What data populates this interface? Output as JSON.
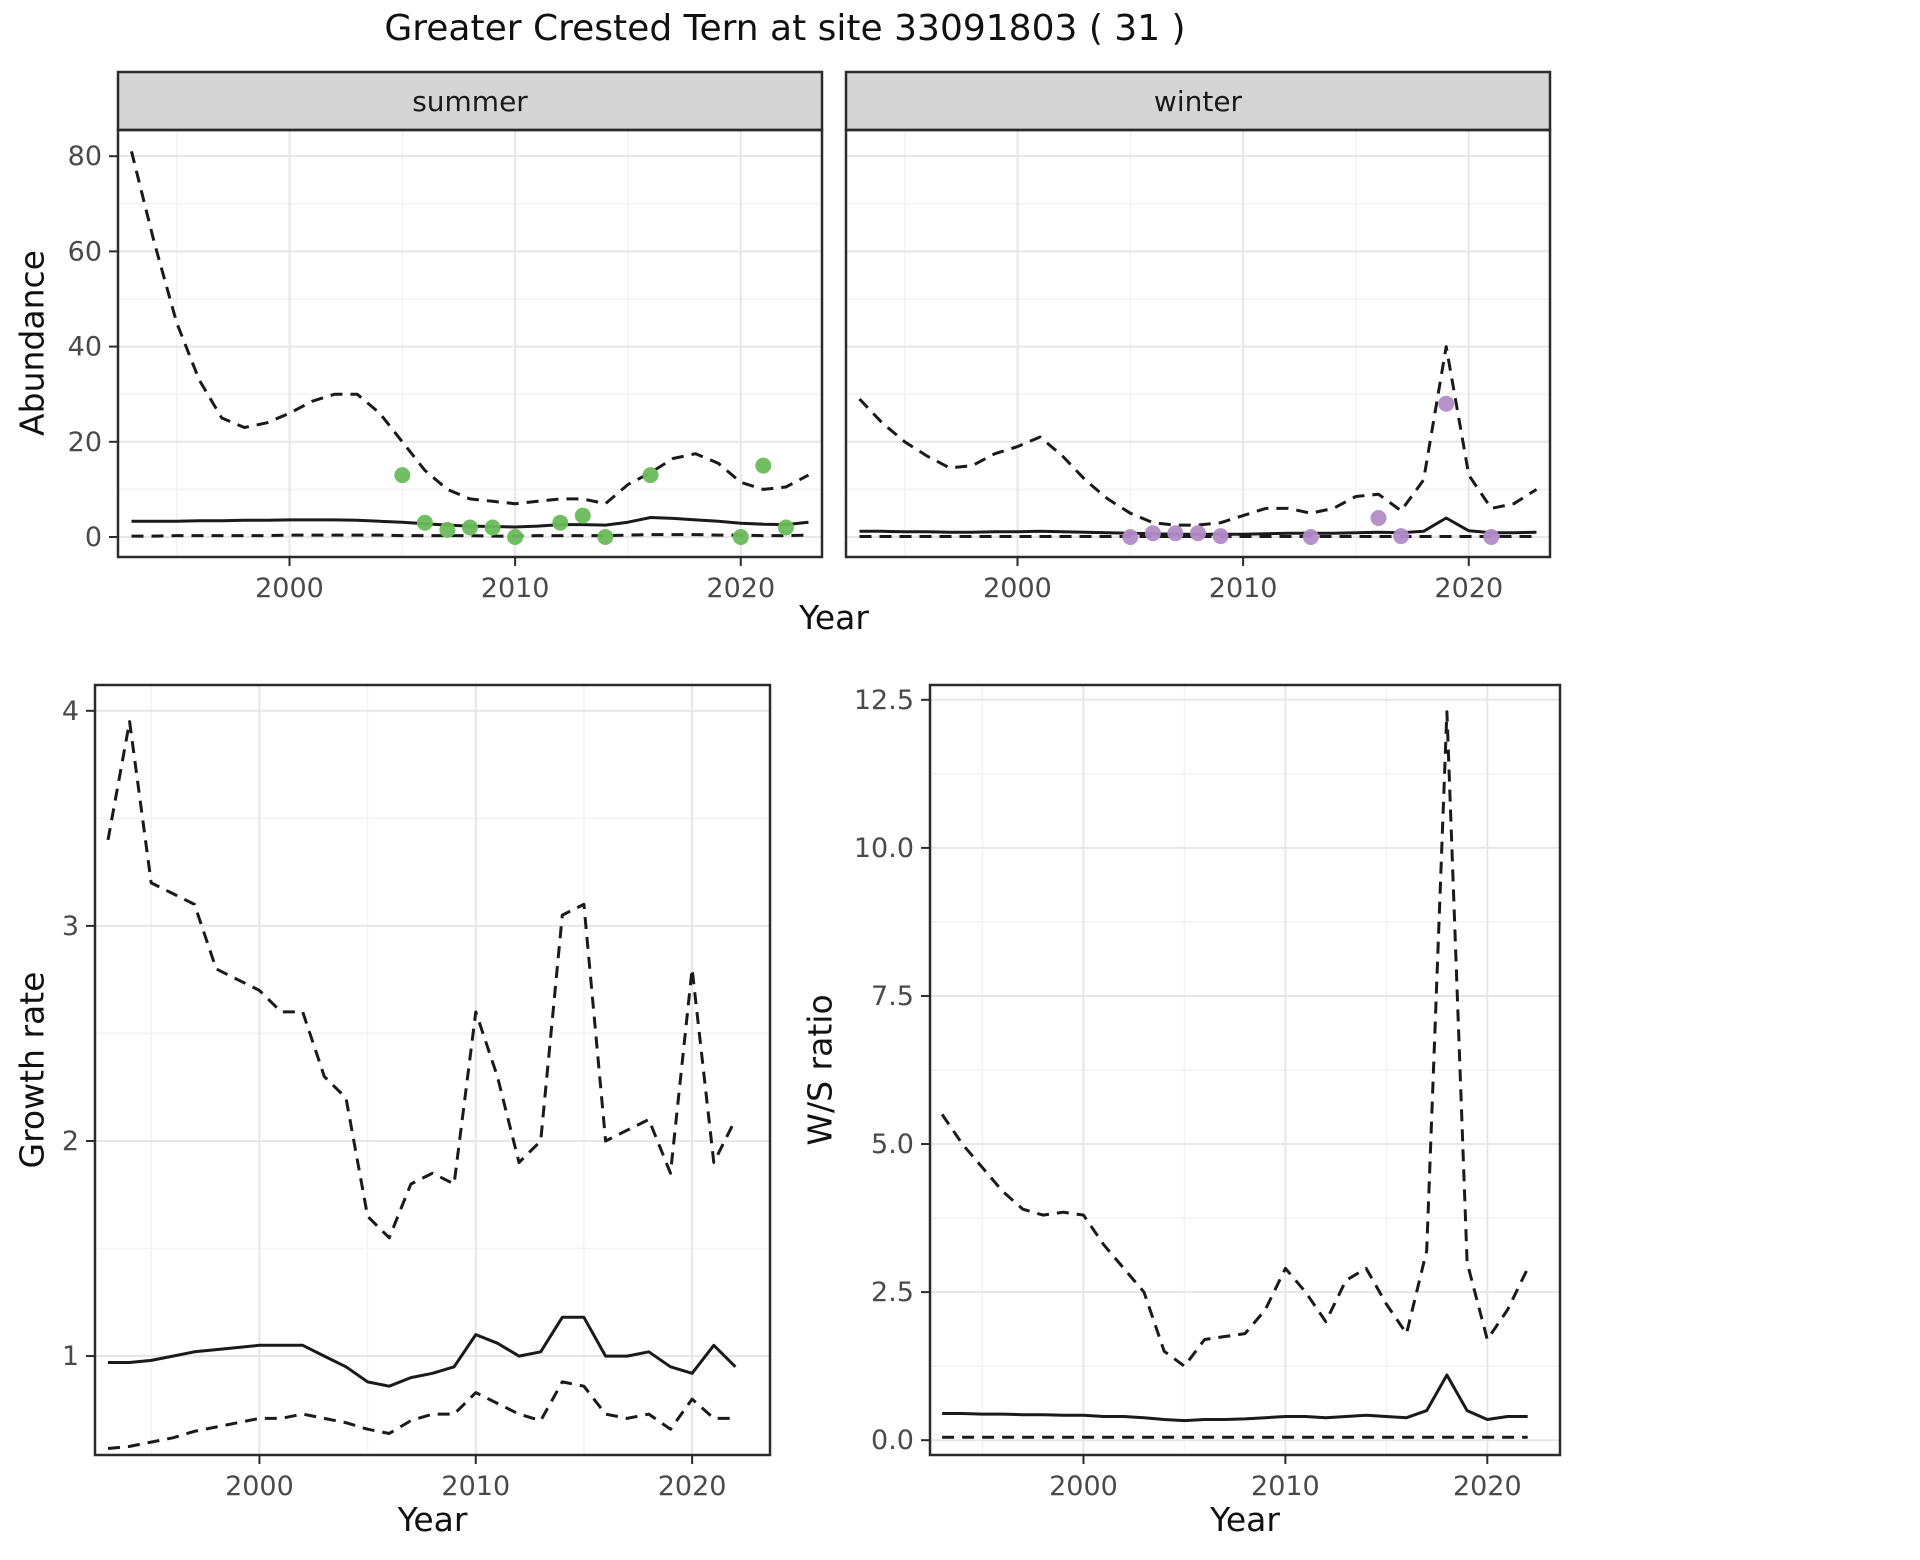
{
  "title": "Greater Crested Tern at site 33091803 ( 31 )",
  "colors": {
    "line": "#1a1a1a",
    "summer_point": "#6abc5b",
    "winter_point": "#b18cc6",
    "strip_bg": "#d5d5d5",
    "panel_border": "#2b2b2b",
    "grid_major": "#e7e7e7",
    "grid_minor": "#f3f3f3",
    "tick_text": "#4a4a4a"
  },
  "chart_data": [
    {
      "id": "abundance_summer",
      "type": "line",
      "strip": "summer",
      "xlabel": "Year",
      "ylabel": "Abundance",
      "xlim": [
        1992.4,
        2023.6
      ],
      "ylim": [
        -4.2,
        85.5
      ],
      "xticks": [
        2000,
        2010,
        2020
      ],
      "xtick_labels": [
        "2000",
        "2010",
        "2020"
      ],
      "yticks": [
        0,
        20,
        40,
        60,
        80
      ],
      "ytick_labels": [
        "0",
        "20",
        "40",
        "60",
        "80"
      ],
      "xminor": [
        1995,
        2005,
        2015
      ],
      "yminor": [
        10,
        30,
        50,
        70
      ],
      "grid": true,
      "legend": "none",
      "x": [
        1993,
        1994,
        1995,
        1996,
        1997,
        1998,
        1999,
        2000,
        2001,
        2002,
        2003,
        2004,
        2005,
        2006,
        2007,
        2008,
        2009,
        2010,
        2011,
        2012,
        2013,
        2014,
        2015,
        2016,
        2017,
        2018,
        2019,
        2020,
        2021,
        2022,
        2023
      ],
      "series": [
        {
          "name": "upper_95ci",
          "style": "dashed",
          "values": [
            81,
            62,
            45,
            33,
            25,
            23,
            24,
            26,
            28.5,
            30,
            30,
            26,
            20,
            14,
            10,
            8,
            7.5,
            7,
            7.5,
            8,
            8,
            7,
            11,
            13.5,
            16.5,
            17.5,
            15.5,
            11.5,
            10,
            10.5,
            13
          ]
        },
        {
          "name": "modelled_mean",
          "style": "solid",
          "values": [
            3.3,
            3.3,
            3.3,
            3.4,
            3.4,
            3.5,
            3.5,
            3.6,
            3.6,
            3.6,
            3.5,
            3.3,
            3.1,
            2.8,
            2.5,
            2.3,
            2.2,
            2.1,
            2.3,
            2.6,
            2.6,
            2.5,
            3.1,
            4.1,
            3.9,
            3.6,
            3.3,
            2.9,
            2.7,
            2.6,
            3.1
          ]
        },
        {
          "name": "lower_95ci",
          "style": "dashed",
          "values": [
            0.2,
            0.2,
            0.3,
            0.3,
            0.3,
            0.3,
            0.3,
            0.4,
            0.4,
            0.4,
            0.4,
            0.4,
            0.3,
            0.3,
            0.3,
            0.3,
            0.2,
            0.2,
            0.3,
            0.3,
            0.3,
            0.3,
            0.4,
            0.5,
            0.5,
            0.5,
            0.4,
            0.4,
            0.3,
            0.3,
            0.4
          ]
        }
      ],
      "points": {
        "name": "observed-counts-summer",
        "color": "#6abc5b",
        "data": [
          [
            2005,
            13
          ],
          [
            2006,
            3
          ],
          [
            2007,
            1.5
          ],
          [
            2008,
            2
          ],
          [
            2009,
            2
          ],
          [
            2010,
            0
          ],
          [
            2012,
            3
          ],
          [
            2013,
            4.5
          ],
          [
            2014,
            0
          ],
          [
            2016,
            13
          ],
          [
            2020,
            0
          ],
          [
            2021,
            15
          ],
          [
            2022,
            2
          ]
        ]
      }
    },
    {
      "id": "abundance_winter",
      "type": "line",
      "strip": "winter",
      "xlabel": "Year",
      "ylabel": "Abundance",
      "xlim": [
        1992.4,
        2023.6
      ],
      "ylim": [
        -4.2,
        85.5
      ],
      "xticks": [
        2000,
        2010,
        2020
      ],
      "xtick_labels": [
        "2000",
        "2010",
        "2020"
      ],
      "yticks": [
        0,
        20,
        40,
        60,
        80
      ],
      "ytick_labels": [
        "0",
        "20",
        "40",
        "60",
        "80"
      ],
      "xminor": [
        1995,
        2005,
        2015
      ],
      "yminor": [
        10,
        30,
        50,
        70
      ],
      "grid": true,
      "legend": "none",
      "x": [
        1993,
        1994,
        1995,
        1996,
        1997,
        1998,
        1999,
        2000,
        2001,
        2002,
        2003,
        2004,
        2005,
        2006,
        2007,
        2008,
        2009,
        2010,
        2011,
        2012,
        2013,
        2014,
        2015,
        2016,
        2017,
        2018,
        2019,
        2020,
        2021,
        2022,
        2023
      ],
      "series": [
        {
          "name": "upper_95ci",
          "style": "dashed",
          "values": [
            29,
            24,
            20,
            17,
            14.5,
            15,
            17.5,
            19,
            21,
            17,
            12,
            8,
            5,
            3,
            2.5,
            2.5,
            3,
            4.5,
            6,
            6,
            5,
            6,
            8.5,
            9,
            5.5,
            12,
            40,
            13,
            6,
            7,
            10
          ]
        },
        {
          "name": "modelled_mean",
          "style": "solid",
          "values": [
            1.2,
            1.2,
            1.1,
            1.1,
            1.0,
            1.0,
            1.1,
            1.1,
            1.2,
            1.1,
            1.0,
            0.9,
            0.8,
            0.7,
            0.6,
            0.6,
            0.6,
            0.6,
            0.7,
            0.8,
            0.8,
            0.8,
            0.9,
            1.0,
            0.9,
            1.2,
            4.0,
            1.3,
            0.9,
            0.9,
            1.0
          ]
        },
        {
          "name": "lower_95ci",
          "style": "dashed",
          "values": [
            0.1,
            0.1,
            0.1,
            0.1,
            0.1,
            0.1,
            0.1,
            0.1,
            0.1,
            0.1,
            0.1,
            0.1,
            0.1,
            0.1,
            0.1,
            0.1,
            0.1,
            0.1,
            0.1,
            0.1,
            0.1,
            0.1,
            0.1,
            0.1,
            0.1,
            0.1,
            0.1,
            0.1,
            0.1,
            0.1,
            0.1
          ]
        }
      ],
      "points": {
        "name": "observed-counts-winter",
        "color": "#b18cc6",
        "data": [
          [
            2005,
            0
          ],
          [
            2006,
            0.8
          ],
          [
            2007,
            0.8
          ],
          [
            2008,
            0.8
          ],
          [
            2009,
            0.2
          ],
          [
            2013,
            0
          ],
          [
            2016,
            4
          ],
          [
            2017,
            0.2
          ],
          [
            2019,
            28
          ],
          [
            2021,
            0
          ]
        ]
      }
    },
    {
      "id": "growth_rate",
      "type": "line",
      "strip": null,
      "xlabel": "Year",
      "ylabel": "Growth rate",
      "xlim": [
        1992.4,
        2023.6
      ],
      "ylim": [
        0.54,
        4.12
      ],
      "xticks": [
        2000,
        2010,
        2020
      ],
      "xtick_labels": [
        "2000",
        "2010",
        "2020"
      ],
      "yticks": [
        1,
        2,
        3,
        4
      ],
      "ytick_labels": [
        "1",
        "2",
        "3",
        "4"
      ],
      "xminor": [
        1995,
        2005,
        2015
      ],
      "yminor": [
        1.5,
        2.5,
        3.5
      ],
      "grid": true,
      "legend": "none",
      "x": [
        1993,
        1994,
        1995,
        1996,
        1997,
        1998,
        1999,
        2000,
        2001,
        2002,
        2003,
        2004,
        2005,
        2006,
        2007,
        2008,
        2009,
        2010,
        2011,
        2012,
        2013,
        2014,
        2015,
        2016,
        2017,
        2018,
        2019,
        2020,
        2021,
        2022
      ],
      "series": [
        {
          "name": "upper_95ci",
          "style": "dashed",
          "values": [
            3.4,
            3.95,
            3.2,
            3.15,
            3.1,
            2.8,
            2.75,
            2.7,
            2.6,
            2.6,
            2.3,
            2.2,
            1.65,
            1.55,
            1.8,
            1.85,
            1.8,
            2.6,
            2.3,
            1.9,
            2.0,
            3.05,
            3.1,
            2.0,
            2.05,
            2.1,
            1.85,
            2.8,
            1.9,
            2.1
          ]
        },
        {
          "name": "modelled_mean",
          "style": "solid",
          "values": [
            0.97,
            0.97,
            0.98,
            1.0,
            1.02,
            1.03,
            1.04,
            1.05,
            1.05,
            1.05,
            1.0,
            0.95,
            0.88,
            0.86,
            0.9,
            0.92,
            0.95,
            1.1,
            1.06,
            1.0,
            1.02,
            1.18,
            1.18,
            1.0,
            1.0,
            1.02,
            0.95,
            0.92,
            1.05,
            0.95
          ]
        },
        {
          "name": "lower_95ci",
          "style": "dashed",
          "values": [
            0.57,
            0.58,
            0.6,
            0.62,
            0.65,
            0.67,
            0.69,
            0.71,
            0.71,
            0.73,
            0.71,
            0.69,
            0.66,
            0.64,
            0.7,
            0.73,
            0.73,
            0.83,
            0.78,
            0.73,
            0.7,
            0.88,
            0.86,
            0.73,
            0.71,
            0.73,
            0.66,
            0.8,
            0.71,
            0.71
          ]
        }
      ],
      "points": null
    },
    {
      "id": "ws_ratio",
      "type": "line",
      "strip": null,
      "xlabel": "Year",
      "ylabel": "W/S ratio",
      "xlim": [
        1992.4,
        2023.6
      ],
      "ylim": [
        -0.25,
        12.75
      ],
      "xticks": [
        2000,
        2010,
        2020
      ],
      "xtick_labels": [
        "2000",
        "2010",
        "2020"
      ],
      "yticks": [
        0,
        2.5,
        5,
        7.5,
        10,
        12.5
      ],
      "ytick_labels": [
        "0.0",
        "2.5",
        "5.0",
        "7.5",
        "10.0",
        "12.5"
      ],
      "xminor": [
        1995,
        2005,
        2015
      ],
      "yminor": [
        1.25,
        3.75,
        6.25,
        8.75,
        11.25
      ],
      "grid": true,
      "legend": "none",
      "x": [
        1993,
        1994,
        1995,
        1996,
        1997,
        1998,
        1999,
        2000,
        2001,
        2002,
        2003,
        2004,
        2005,
        2006,
        2007,
        2008,
        2009,
        2010,
        2011,
        2012,
        2013,
        2014,
        2015,
        2016,
        2017,
        2018,
        2019,
        2020,
        2021,
        2022
      ],
      "series": [
        {
          "name": "upper_95ci",
          "style": "dashed",
          "values": [
            5.5,
            5.0,
            4.6,
            4.2,
            3.9,
            3.8,
            3.85,
            3.8,
            3.3,
            2.9,
            2.5,
            1.5,
            1.25,
            1.7,
            1.75,
            1.8,
            2.2,
            2.9,
            2.5,
            2.0,
            2.7,
            2.9,
            2.3,
            1.8,
            3.2,
            12.3,
            3.0,
            1.7,
            2.2,
            2.9
          ]
        },
        {
          "name": "modelled_mean",
          "style": "solid",
          "values": [
            0.45,
            0.45,
            0.44,
            0.44,
            0.43,
            0.43,
            0.42,
            0.42,
            0.4,
            0.4,
            0.38,
            0.35,
            0.33,
            0.35,
            0.35,
            0.36,
            0.38,
            0.4,
            0.4,
            0.38,
            0.4,
            0.42,
            0.4,
            0.38,
            0.5,
            1.1,
            0.5,
            0.35,
            0.4,
            0.4
          ]
        },
        {
          "name": "lower_95ci",
          "style": "dashed",
          "values": [
            0.05,
            0.05,
            0.05,
            0.05,
            0.05,
            0.05,
            0.05,
            0.05,
            0.05,
            0.05,
            0.05,
            0.05,
            0.05,
            0.05,
            0.05,
            0.05,
            0.05,
            0.05,
            0.05,
            0.05,
            0.05,
            0.05,
            0.05,
            0.05,
            0.05,
            0.05,
            0.05,
            0.05,
            0.05,
            0.05
          ]
        }
      ],
      "points": null
    }
  ]
}
